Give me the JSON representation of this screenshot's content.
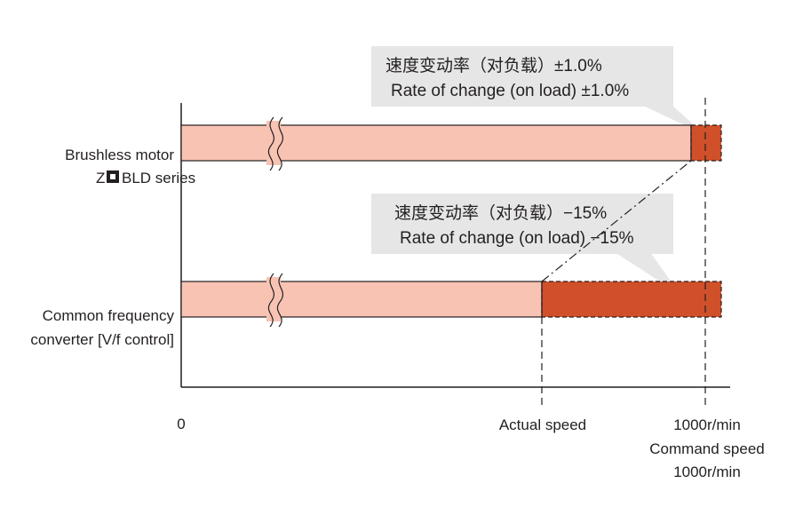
{
  "rows": [
    {
      "label_line1": "Brushless motor",
      "label_line2_prefix": "Z",
      "label_line2_suffix": "BLD series",
      "callout": {
        "line1": "速度变动率（对负载）±1.0%",
        "line2": "Rate of change (on load)  ±1.0%"
      }
    },
    {
      "label_line1": "Common frequency",
      "label_line2": "converter [V/f control]",
      "callout": {
        "line1": "速度变动率（对负载）−15%",
        "line2": "Rate of change (on load) −15%"
      }
    }
  ],
  "axis": {
    "origin": "0",
    "actual_speed": "Actual speed",
    "command_value": "1000r/min",
    "command_label": "Command speed",
    "command_label_value": "1000r/min"
  },
  "colors": {
    "bar_light": "#f8c3b3",
    "bar_dark": "#d0502a",
    "callout_bg": "#e6e6e7",
    "line": "#231f20"
  }
}
